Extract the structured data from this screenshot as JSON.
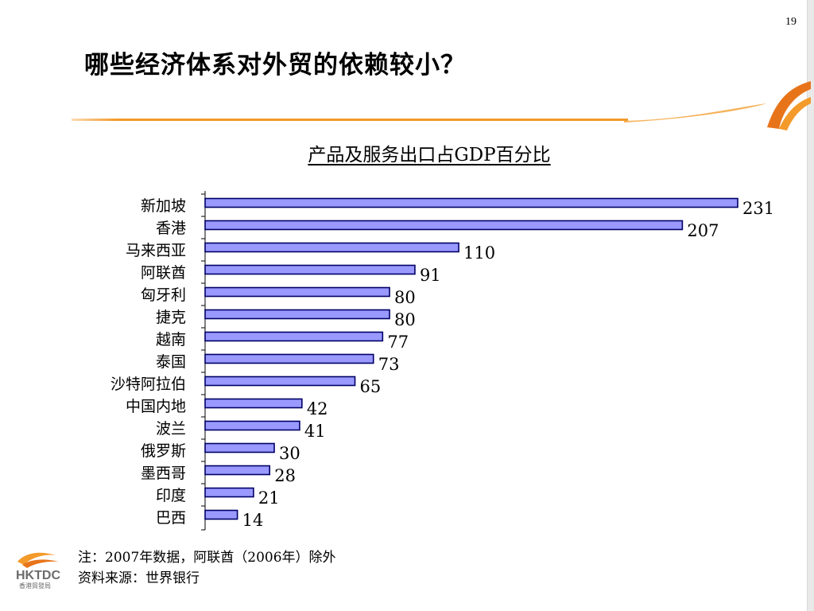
{
  "page_number": "19",
  "title": "哪些经济体系对外贸的依赖较小？",
  "logo": {
    "text": "HKTDC",
    "subtext": "香港貿發局"
  },
  "colors": {
    "bar_fill": "#9999ff",
    "bar_stroke": "#000066",
    "accent_orange": "#f39a2a"
  },
  "notes": {
    "note": "注：2007年数据，阿联酋（2006年）除外",
    "source": "资料来源：世界银行"
  },
  "chart_data": {
    "type": "bar",
    "orientation": "horizontal",
    "title": "产品及服务出口占GDP百分比",
    "categories": [
      "新加坡",
      "香港",
      "马来西亚",
      "阿联酋",
      "匈牙利",
      "捷克",
      "越南",
      "泰国",
      "沙特阿拉伯",
      "中国内地",
      "波兰",
      "俄罗斯",
      "墨西哥",
      "印度",
      "巴西"
    ],
    "values": [
      231,
      207,
      110,
      91,
      80,
      80,
      77,
      73,
      65,
      42,
      41,
      30,
      28,
      21,
      14
    ],
    "data_labels": [
      "231",
      "207",
      "110",
      "91",
      "80",
      "80",
      "77",
      "73",
      "65",
      "42",
      "41",
      "30",
      "28",
      "21",
      "14"
    ],
    "xlim": [
      0,
      240
    ],
    "grid": false,
    "legend": "none"
  }
}
